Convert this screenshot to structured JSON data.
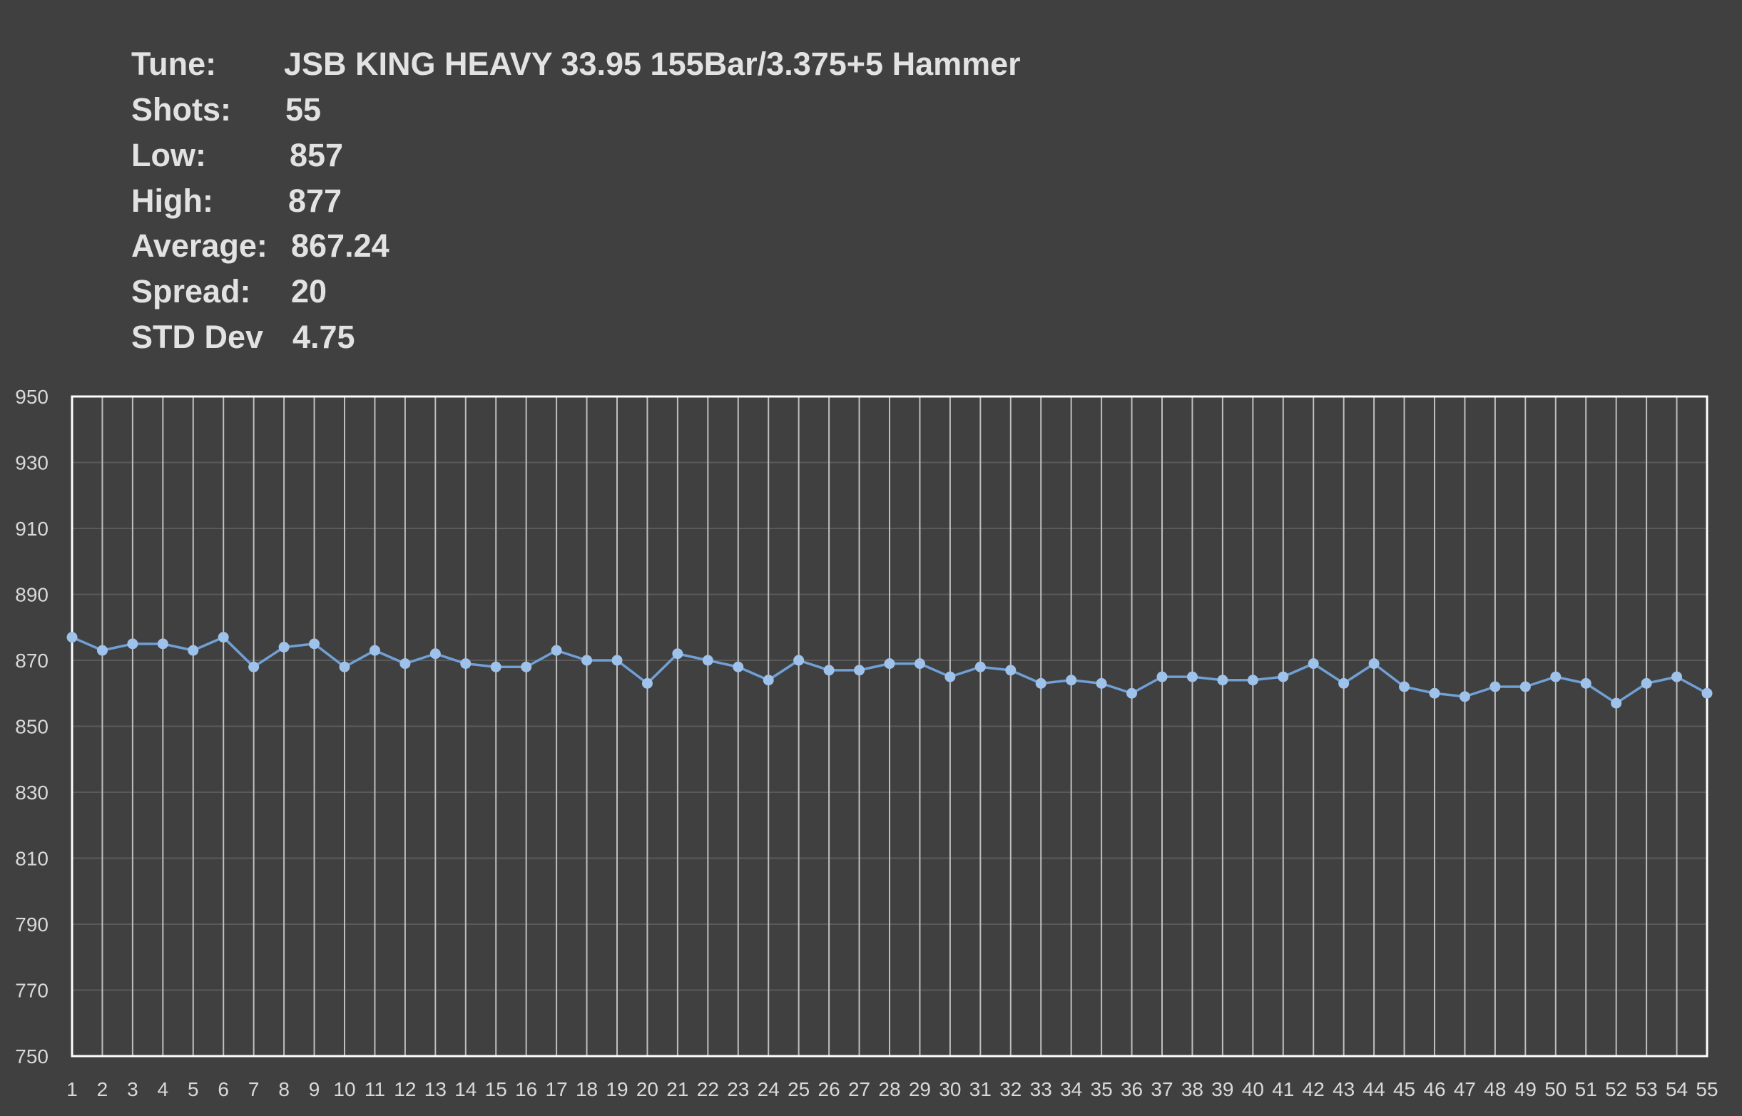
{
  "stats": [
    {
      "label": "Tune:",
      "value": "JSB KING HEAVY 33.95 155Bar/3.375+5 Hammer"
    },
    {
      "label": "Shots:",
      "value": "55"
    },
    {
      "label": "Low:",
      "value": "857"
    },
    {
      "label": "High:",
      "value": "877"
    },
    {
      "label": "Average:",
      "value": "867.24"
    },
    {
      "label": "Spread:",
      "value": "20"
    },
    {
      "label": "STD Dev",
      "value": "4.75"
    }
  ],
  "colors": {
    "background": "#404040",
    "text": "#e2e2e2",
    "series": "#6fa0d6",
    "marker": "#9fc2ea",
    "vertical_grid": "#bfbfbf",
    "horizontal_grid": "#5a5a5a",
    "frame": "#ffffff"
  },
  "chart_data": {
    "type": "line",
    "title": "",
    "xlabel": "",
    "ylabel": "",
    "x": [
      1,
      2,
      3,
      4,
      5,
      6,
      7,
      8,
      9,
      10,
      11,
      12,
      13,
      14,
      15,
      16,
      17,
      18,
      19,
      20,
      21,
      22,
      23,
      24,
      25,
      26,
      27,
      28,
      29,
      30,
      31,
      32,
      33,
      34,
      35,
      36,
      37,
      38,
      39,
      40,
      41,
      42,
      43,
      44,
      45,
      46,
      47,
      48,
      49,
      50,
      51,
      52,
      53,
      54,
      55
    ],
    "ylim": [
      750,
      950
    ],
    "yticks": [
      750,
      770,
      790,
      810,
      830,
      850,
      870,
      890,
      910,
      930,
      950
    ],
    "grid": {
      "vertical": true,
      "horizontal": true
    },
    "legend": "none",
    "series": [
      {
        "values": [
          877,
          873,
          875,
          875,
          873,
          877,
          868,
          874,
          875,
          868,
          873,
          869,
          872,
          869,
          868,
          868,
          873,
          870,
          870,
          863,
          872,
          870,
          868,
          864,
          870,
          867,
          867,
          869,
          869,
          865,
          868,
          867,
          863,
          864,
          863,
          860,
          865,
          865,
          864,
          864,
          865,
          869,
          863,
          869,
          862,
          860,
          859,
          862,
          862,
          865,
          863,
          857,
          863,
          865,
          860
        ]
      }
    ]
  }
}
